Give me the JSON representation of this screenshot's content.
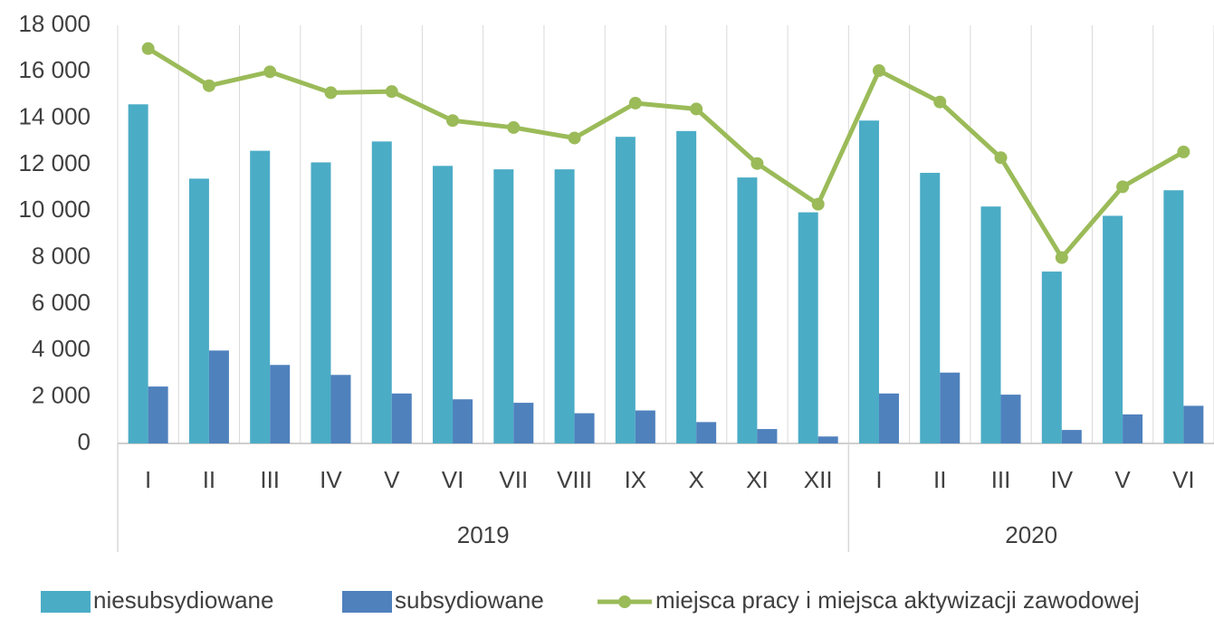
{
  "chart_data": {
    "type": "bar-line",
    "groups": [
      {
        "name": "2019",
        "categories": [
          "I",
          "II",
          "III",
          "IV",
          "V",
          "VI",
          "VII",
          "VIII",
          "IX",
          "X",
          "XI",
          "XII"
        ]
      },
      {
        "name": "2020",
        "categories": [
          "I",
          "II",
          "III",
          "IV",
          "V",
          "VI"
        ]
      }
    ],
    "series": [
      {
        "name": "niesubsydiowane",
        "type": "bar",
        "color": "#4bacc6",
        "values": [
          14600,
          11400,
          12600,
          12100,
          13000,
          11950,
          11800,
          11800,
          13200,
          13450,
          11450,
          9950,
          13900,
          11650,
          10200,
          7400,
          9800,
          10900
        ]
      },
      {
        "name": "subsydiowane",
        "type": "bar",
        "color": "#4f81bd",
        "values": [
          2450,
          4000,
          3380,
          2950,
          2150,
          1900,
          1750,
          1300,
          1420,
          920,
          620,
          300,
          2150,
          3050,
          2100,
          580,
          1250,
          1620
        ]
      },
      {
        "name": "miejsca pracy i miejsca aktywizacji zawodowej",
        "type": "line",
        "color": "#9bbb59",
        "values": [
          17000,
          15400,
          16000,
          15100,
          15150,
          13900,
          13600,
          13150,
          14650,
          14400,
          12050,
          10300,
          16050,
          14700,
          12300,
          8000,
          11050,
          12550
        ]
      }
    ],
    "ylim": [
      0,
      18000
    ],
    "yticks": [
      0,
      {
        "value": 2000,
        "label": "2 000"
      },
      {
        "value": 4000,
        "label": "4 000"
      },
      {
        "value": 6000,
        "label": "6 000"
      },
      {
        "value": 8000,
        "label": "8 000"
      },
      {
        "value": 10000,
        "label": "10 000"
      },
      {
        "value": 12000,
        "label": "12 000"
      },
      {
        "value": 14000,
        "label": "14 000"
      },
      {
        "value": 16000,
        "label": "16 000"
      },
      {
        "value": 18000,
        "label": "18 000"
      }
    ],
    "legend": "bottom"
  }
}
